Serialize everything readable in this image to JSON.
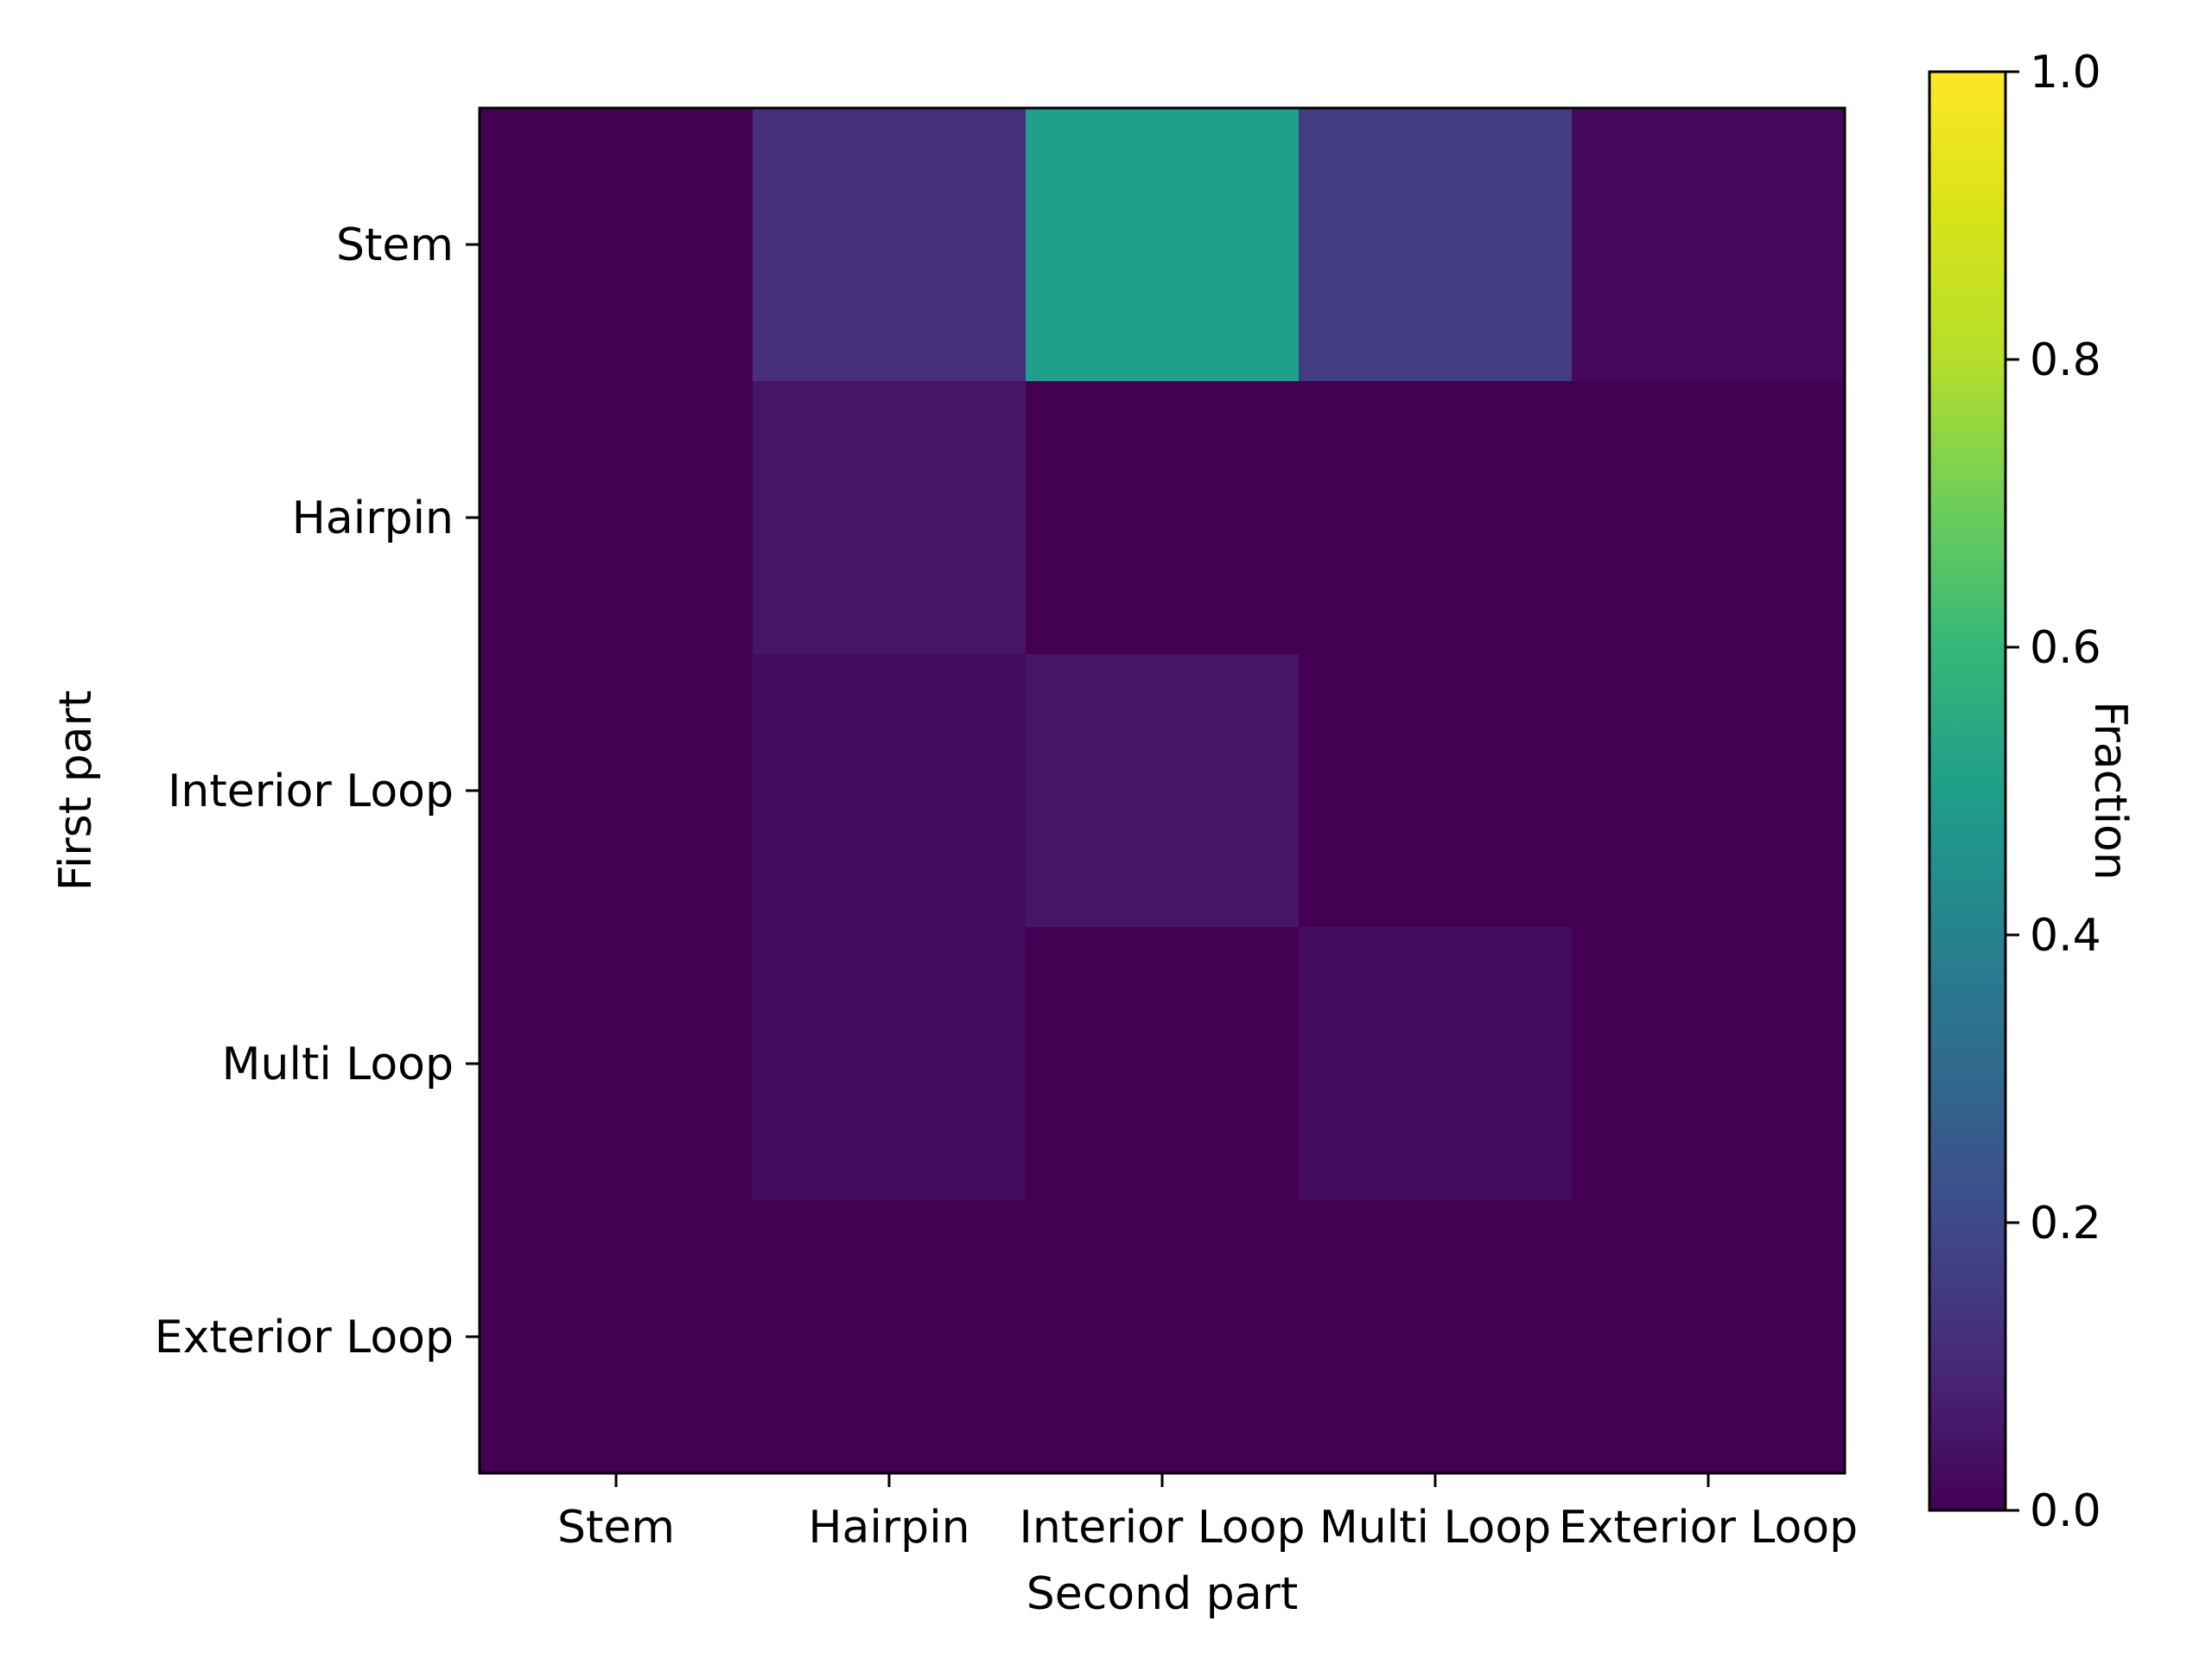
{
  "chart_data": {
    "type": "heatmap",
    "xlabel": "Second part",
    "ylabel": "First part",
    "x_categories": [
      "Stem",
      "Hairpin",
      "Interior Loop",
      "Multi Loop",
      "Exterior Loop"
    ],
    "y_categories": [
      "Stem",
      "Hairpin",
      "Interior Loop",
      "Multi Loop",
      "Exterior Loop"
    ],
    "values": [
      [
        0.0,
        0.12,
        0.5,
        0.16,
        0.02
      ],
      [
        0.0,
        0.05,
        0.0,
        0.0,
        0.0
      ],
      [
        0.0,
        0.03,
        0.05,
        0.0,
        0.0
      ],
      [
        0.0,
        0.03,
        0.0,
        0.03,
        0.0
      ],
      [
        0.0,
        0.0,
        0.0,
        0.0,
        0.0
      ]
    ],
    "colormap": "viridis",
    "colorbar": {
      "label": "Fraction",
      "range": [
        0.0,
        1.0
      ],
      "ticks": [
        "0.0",
        "0.2",
        "0.4",
        "0.6",
        "0.8",
        "1.0"
      ]
    }
  }
}
